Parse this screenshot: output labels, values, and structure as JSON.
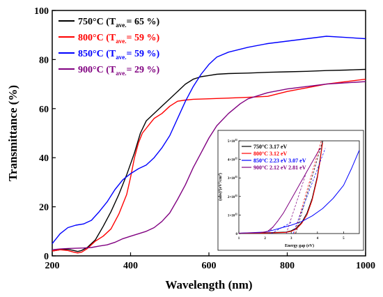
{
  "chart_data": [
    {
      "type": "line",
      "xlabel": "Wavelength (nm)",
      "ylabel": "Transmittance (%)",
      "xlim": [
        200,
        1000
      ],
      "ylim": [
        0,
        100
      ],
      "xticks": [
        200,
        400,
        600,
        800,
        1000
      ],
      "yticks": [
        0,
        20,
        40,
        60,
        80,
        100
      ],
      "legend_position": "top-left",
      "series": [
        {
          "name": "750°C (Tave.= 65 %)",
          "name_main": "750°C (T",
          "name_sub": "ave.",
          "name_tail": "= 65 %)",
          "color": "#000000",
          "x": [
            200,
            220,
            240,
            255,
            265,
            275,
            290,
            310,
            330,
            350,
            370,
            390,
            410,
            425,
            440,
            460,
            480,
            500,
            520,
            540,
            560,
            580,
            600,
            620,
            650,
            700,
            750,
            800,
            850,
            900,
            950,
            1000
          ],
          "y": [
            2,
            2.5,
            2.7,
            2.2,
            1.8,
            2.2,
            3.5,
            6.5,
            12,
            18,
            25,
            33,
            42,
            50,
            55,
            58,
            61,
            64,
            67,
            70,
            72,
            73,
            73.5,
            74,
            74.3,
            74.5,
            74.8,
            75,
            75.2,
            75.5,
            75.7,
            76
          ]
        },
        {
          "name": "800°C (Tave.= 59 %)",
          "name_main": "800°C (T",
          "name_sub": "ave.",
          "name_tail": "= 59 %)",
          "color": "#ff0000",
          "x": [
            200,
            220,
            240,
            255,
            265,
            275,
            290,
            310,
            330,
            350,
            370,
            390,
            400,
            410,
            420,
            430,
            440,
            450,
            460,
            480,
            500,
            520,
            540,
            560,
            600,
            650,
            700,
            750,
            800,
            850,
            900,
            950,
            1000
          ],
          "y": [
            2,
            2.5,
            2.2,
            1.5,
            1.2,
            1.5,
            3,
            6,
            8,
            11,
            17,
            25,
            32,
            40,
            46,
            50,
            52,
            54,
            56,
            58,
            61,
            63,
            63.5,
            63.8,
            64,
            64.3,
            64.6,
            65,
            67,
            68.5,
            70,
            71,
            72
          ]
        },
        {
          "name": "850°C (Tave.= 59 %)",
          "name_main": "850°C (T",
          "name_sub": "ave.",
          "name_tail": "= 59 %)",
          "color": "#0000ff",
          "x": [
            200,
            220,
            240,
            260,
            280,
            300,
            320,
            340,
            360,
            380,
            400,
            420,
            440,
            460,
            480,
            500,
            520,
            540,
            560,
            580,
            600,
            620,
            650,
            700,
            750,
            800,
            850,
            900,
            950,
            1000
          ],
          "y": [
            5,
            9,
            11.5,
            12.5,
            13,
            14.5,
            18,
            22,
            27,
            31,
            33.5,
            35.5,
            37,
            40,
            44,
            49,
            56,
            63,
            69,
            74,
            78,
            81,
            83,
            85,
            86.5,
            87.5,
            88.5,
            89.5,
            89,
            88.5
          ]
        },
        {
          "name": "900°C (Tave.= 29 %)",
          "name_main": "900°C (T",
          "name_sub": "ave.",
          "name_tail": "= 29 %)",
          "color": "#800080",
          "x": [
            200,
            220,
            240,
            260,
            280,
            300,
            320,
            340,
            360,
            380,
            400,
            420,
            440,
            460,
            480,
            500,
            520,
            540,
            560,
            580,
            600,
            620,
            650,
            680,
            700,
            720,
            750,
            800,
            850,
            900,
            950,
            1000
          ],
          "y": [
            2.5,
            2.8,
            3,
            3.1,
            3.2,
            3.4,
            4,
            4.5,
            5.5,
            7,
            8,
            9,
            10,
            11.5,
            14,
            17.5,
            23,
            29,
            36,
            42,
            48,
            53,
            58,
            62,
            64,
            65,
            66.5,
            68,
            69,
            70,
            70.5,
            71
          ]
        }
      ]
    },
    {
      "type": "line",
      "xlabel": "Energy gap (eV)",
      "ylabel": "(αhν)²(eV²/cm²)",
      "ylabel_main": "(αhν)",
      "ylabel_sup1": "2",
      "ylabel_mid": "(eV",
      "ylabel_sup2": "2",
      "ylabel_mid2": "/cm",
      "ylabel_sup3": "2",
      "ylabel_end": ")",
      "xlim": [
        1,
        5.6
      ],
      "ylim": [
        0,
        5
      ],
      "xticks": [
        1,
        2,
        3,
        4,
        5
      ],
      "ytick_labels": [
        "0",
        "1×10",
        "2×10",
        "3×10",
        "4×10",
        "5×10"
      ],
      "ytick_exp": "11",
      "legend_position": "top-left",
      "legend": [
        {
          "label": "750°C 3.17 eV",
          "color": "#000000"
        },
        {
          "label": "800°C 3.12 eV",
          "color": "#ff0000"
        },
        {
          "label": "850°C 2.23 eV 3.07 eV",
          "color": "#0000ff"
        },
        {
          "label": "900°C 2.12 eV 2.81 eV",
          "color": "#800080"
        }
      ],
      "series": [
        {
          "name": "750°C",
          "color": "#000000",
          "x": [
            1.0,
            2.0,
            2.8,
            3.0,
            3.2,
            3.4,
            3.6,
            3.8,
            4.0,
            4.1,
            4.2
          ],
          "y": [
            0.02,
            0.04,
            0.08,
            0.15,
            0.3,
            0.6,
            1.1,
            1.9,
            3.1,
            4.0,
            5.0
          ]
        },
        {
          "name": "800°C",
          "color": "#ff0000",
          "x": [
            1.0,
            2.0,
            2.8,
            3.0,
            3.2,
            3.4,
            3.6,
            3.8,
            4.0,
            4.1,
            4.2
          ],
          "y": [
            0.02,
            0.03,
            0.06,
            0.12,
            0.25,
            0.55,
            1.0,
            1.8,
            3.0,
            3.9,
            4.9
          ]
        },
        {
          "name": "850°C",
          "color": "#0000ff",
          "x": [
            1.0,
            2.0,
            2.3,
            2.6,
            3.0,
            3.4,
            3.8,
            4.2,
            4.6,
            5.0,
            5.3,
            5.6
          ],
          "y": [
            0.02,
            0.08,
            0.18,
            0.3,
            0.45,
            0.65,
            0.95,
            1.35,
            1.9,
            2.6,
            3.5,
            4.5
          ]
        },
        {
          "name": "900°C",
          "color": "#800080",
          "x": [
            1.0,
            1.8,
            2.1,
            2.3,
            2.5,
            2.7,
            2.9,
            3.1,
            3.3,
            3.5,
            3.7,
            3.9,
            4.1
          ],
          "y": [
            0.02,
            0.05,
            0.12,
            0.35,
            0.7,
            1.1,
            1.6,
            2.1,
            2.6,
            3.1,
            3.6,
            4.1,
            4.6
          ]
        }
      ],
      "tangents": [
        {
          "color": "#000000",
          "x": [
            3.17,
            4.2
          ],
          "y": [
            0,
            5.0
          ]
        },
        {
          "color": "#ff0000",
          "x": [
            3.12,
            4.15
          ],
          "y": [
            0,
            5.0
          ]
        },
        {
          "color": "#0000ff",
          "x": [
            2.23,
            3.0
          ],
          "y": [
            0,
            0.6
          ]
        },
        {
          "color": "#0000ff",
          "x": [
            3.07,
            4.3
          ],
          "y": [
            0,
            4.6
          ]
        },
        {
          "color": "#800080",
          "x": [
            2.12,
            2.6
          ],
          "y": [
            0,
            0.9
          ]
        },
        {
          "color": "#800080",
          "x": [
            2.81,
            3.6
          ],
          "y": [
            0,
            3.4
          ]
        }
      ]
    }
  ]
}
